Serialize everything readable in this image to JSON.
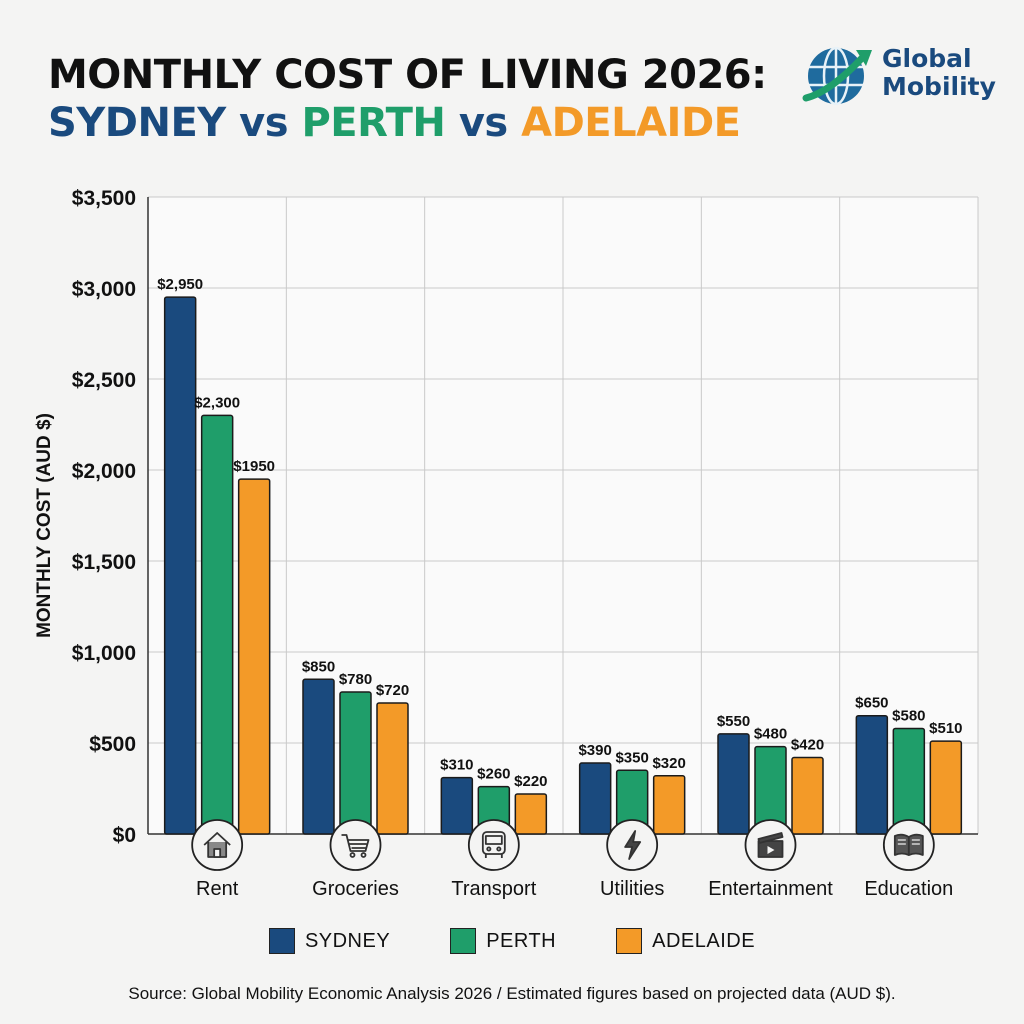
{
  "header": {
    "title_line1": "MONTHLY COST OF LIVING 2026:",
    "title_city1": "SYDNEY",
    "title_vs1": " vs ",
    "title_city2": "PERTH",
    "title_vs2": " vs ",
    "title_city3": "ADELAIDE"
  },
  "logo": {
    "line1": "Global",
    "line2": "Mobility",
    "icon": "globe-arrow-icon"
  },
  "colors": {
    "sydney": "#1a4a7e",
    "perth": "#1f9e6a",
    "adelaide": "#f39a28"
  },
  "chart_data": {
    "type": "bar",
    "ylabel": "MONTHLY COST (AUD $)",
    "ylim": [
      0,
      3500
    ],
    "yticks": [
      0,
      500,
      1000,
      1500,
      2000,
      2500,
      3000,
      3500
    ],
    "ytick_labels": [
      "$0",
      "$500",
      "$1,000",
      "$1,500",
      "$2,000",
      "$2,500",
      "$3,000",
      "$3,500"
    ],
    "grid": true,
    "legend_position": "bottom",
    "categories": [
      "Rent",
      "Groceries",
      "Transport",
      "Utilities",
      "Entertainment",
      "Education"
    ],
    "category_icons": [
      "house-icon",
      "shopping-cart-icon",
      "bus-icon",
      "lightning-icon",
      "clapperboard-icon",
      "book-icon"
    ],
    "series": [
      {
        "name": "SYDNEY",
        "values": [
          2950,
          850,
          310,
          390,
          550,
          650
        ],
        "labels": [
          "$2,950",
          "$850",
          "$310",
          "$390",
          "$550",
          "$650"
        ]
      },
      {
        "name": "PERTH",
        "values": [
          2300,
          780,
          260,
          350,
          480,
          580
        ],
        "labels": [
          "$2,300",
          "$780",
          "$260",
          "$350",
          "$480",
          "$580"
        ]
      },
      {
        "name": "ADELAIDE",
        "values": [
          1950,
          720,
          220,
          320,
          420,
          510
        ],
        "labels": [
          "$1950",
          "$720",
          "$220",
          "$320",
          "$420",
          "$510"
        ]
      }
    ]
  },
  "footer": {
    "source": "Source: Global Mobility Economic Analysis 2026 / Estimated figures based on projected data (AUD $)."
  }
}
